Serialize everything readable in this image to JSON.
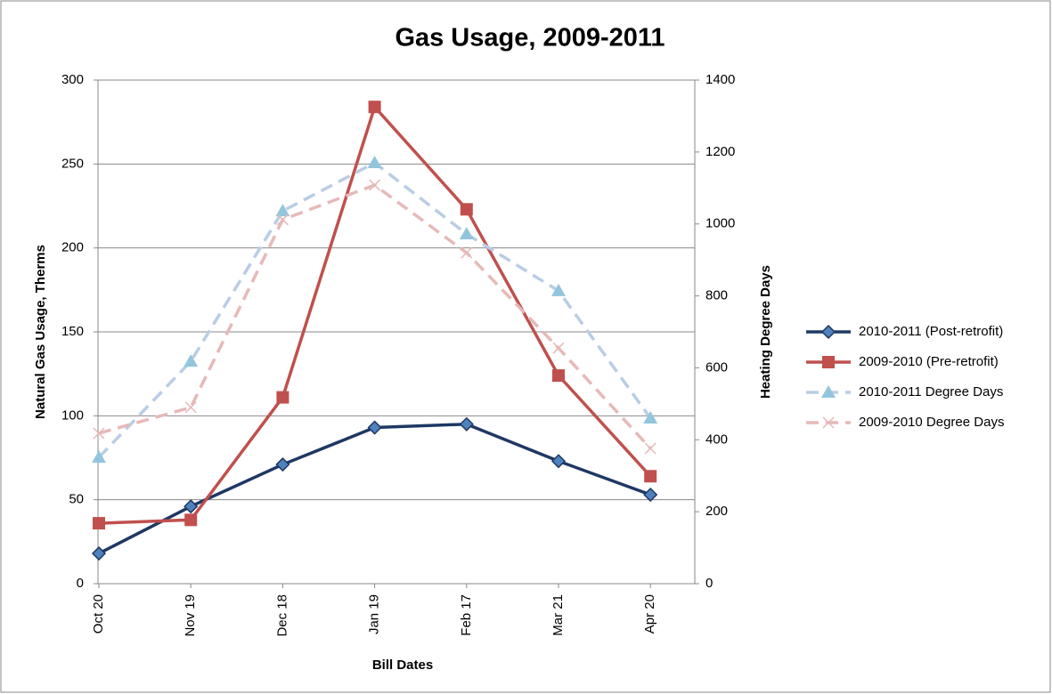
{
  "chart_data": {
    "type": "line",
    "title": "Gas Usage, 2009-2011",
    "xlabel": "Bill Dates",
    "ylabel": "Natural Gas Usage, Therms",
    "y2label": "Heating Degree Days",
    "categories": [
      "Oct 20",
      "Nov 19",
      "Dec 18",
      "Jan 19",
      "Feb 17",
      "Mar 21",
      "Apr 20"
    ],
    "ylim": [
      0,
      300
    ],
    "yticks": [
      0,
      50,
      100,
      150,
      200,
      250,
      300
    ],
    "y2lim": [
      0,
      1400
    ],
    "y2ticks": [
      0,
      200,
      400,
      600,
      800,
      1000,
      1200,
      1400
    ],
    "grid": true,
    "legend": "right",
    "series": [
      {
        "name": "2010-2011 (Post-retrofit)",
        "color": "#1f3864",
        "marker_color": "#4f81bd",
        "marker": "diamond",
        "dashed": false,
        "values": [
          18,
          46,
          71,
          93,
          95,
          73,
          53
        ]
      },
      {
        "name": "2009-2010 (Pre-retrofit)",
        "color": "#c0504d",
        "marker_color": "#c0504d",
        "marker": "square",
        "dashed": false,
        "values": [
          36,
          38,
          111,
          284,
          223,
          124,
          64
        ]
      },
      {
        "name": "2010-2011 Degree Days",
        "color": "#b9cde5",
        "marker_color": "#93c6dd",
        "marker": "triangle",
        "dashed": true,
        "axis": "y2",
        "values": [
          351,
          618,
          1036,
          1170,
          972,
          814,
          460
        ]
      },
      {
        "name": "2009-2010 Degree Days",
        "color": "#e6b9b8",
        "marker_color": "#e6b9b8",
        "marker": "x",
        "dashed": true,
        "axis": "y2",
        "values": [
          418,
          490,
          1012,
          1108,
          920,
          655,
          376
        ]
      }
    ]
  }
}
